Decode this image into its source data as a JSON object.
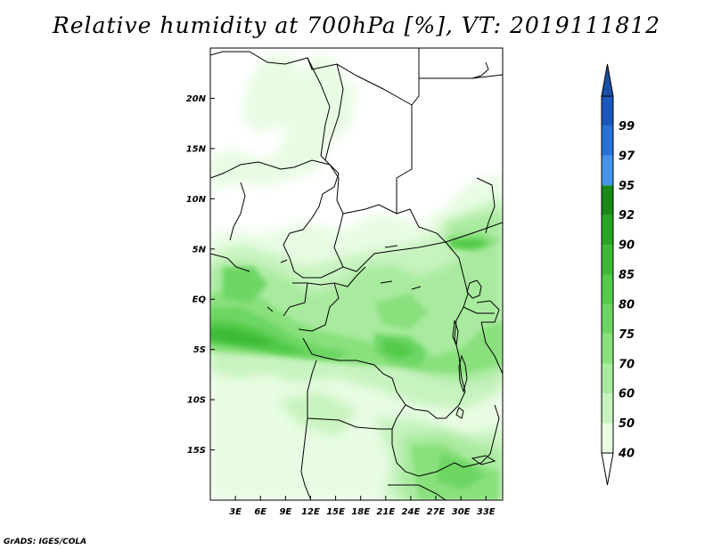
{
  "title": "Relative humidity at 700hPa [%], VT: 2019111812",
  "credit": "GrADS: IGES/COLA",
  "colors": {
    "frame": "#000000",
    "borders": "#000000",
    "land_background": "#ffffff"
  },
  "map": {
    "lon_range": [
      0,
      35
    ],
    "lat_range": [
      -20,
      25
    ],
    "lat_ticks": [
      {
        "value": 20,
        "label": "20N"
      },
      {
        "value": 15,
        "label": "15N"
      },
      {
        "value": 10,
        "label": "10N"
      },
      {
        "value": 5,
        "label": "5N"
      },
      {
        "value": 0,
        "label": "EQ"
      },
      {
        "value": -5,
        "label": "5S"
      },
      {
        "value": -10,
        "label": "10S"
      },
      {
        "value": -15,
        "label": "15S"
      }
    ],
    "lon_ticks": [
      {
        "value": 3,
        "label": "3E"
      },
      {
        "value": 6,
        "label": "6E"
      },
      {
        "value": 9,
        "label": "9E"
      },
      {
        "value": 12,
        "label": "12E"
      },
      {
        "value": 15,
        "label": "15E"
      },
      {
        "value": 18,
        "label": "18E"
      },
      {
        "value": 21,
        "label": "21E"
      },
      {
        "value": 24,
        "label": "24E"
      },
      {
        "value": 27,
        "label": "27E"
      },
      {
        "value": 30,
        "label": "30E"
      },
      {
        "value": 33,
        "label": "33E"
      }
    ]
  },
  "colorbar": {
    "levels": [
      {
        "label": "40",
        "color": "#e8fce3"
      },
      {
        "label": "50",
        "color": "#c7f3bf"
      },
      {
        "label": "60",
        "color": "#a8ea9e"
      },
      {
        "label": "70",
        "color": "#89e07d"
      },
      {
        "label": "75",
        "color": "#6dd663"
      },
      {
        "label": "80",
        "color": "#52ca4a"
      },
      {
        "label": "85",
        "color": "#3cba37"
      },
      {
        "label": "90",
        "color": "#27a524"
      },
      {
        "label": "92",
        "color": "#168a14"
      },
      {
        "label": "95",
        "color": "#4594ea"
      },
      {
        "label": "97",
        "color": "#2672d8"
      },
      {
        "label": "99",
        "color": "#1a57be"
      }
    ],
    "top_arrow_color": "#1a4fa6",
    "bottom_arrow_color": "#ffffff"
  }
}
